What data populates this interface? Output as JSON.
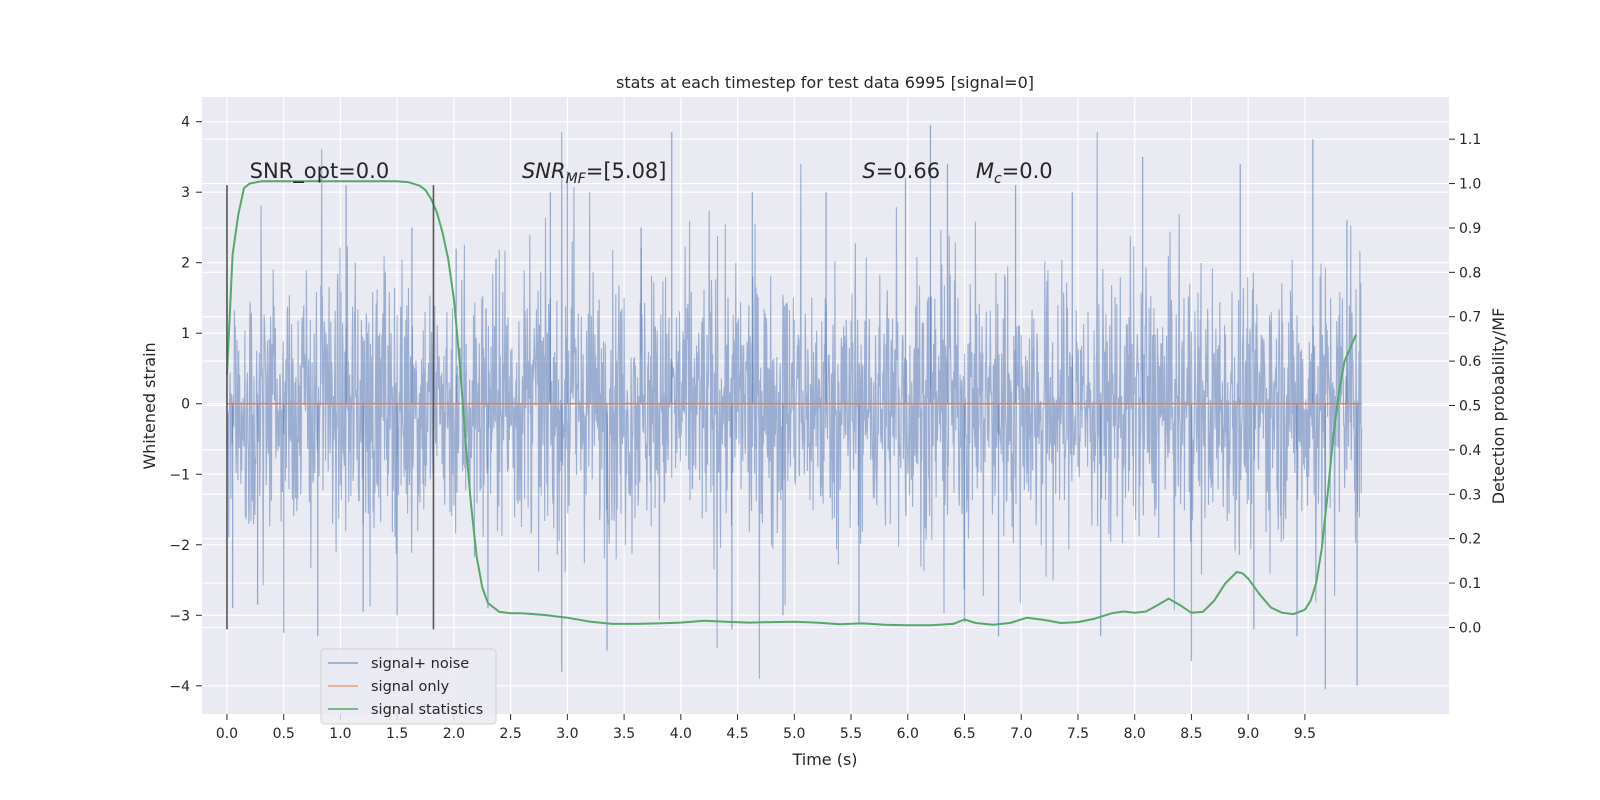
{
  "chart_data": {
    "type": "line",
    "title": "stats at each timestep for test data 6995 [signal=0]",
    "xlabel": "Time (s)",
    "ylabel": "Whitened strain",
    "y2label": "Detection probability/MF",
    "xlim": [
      -0.22,
      10.77
    ],
    "ylim": [
      -4.4,
      4.35
    ],
    "y2lim": [
      -0.195,
      1.195
    ],
    "x_ticks": [
      0.0,
      0.5,
      1.0,
      1.5,
      2.0,
      2.5,
      3.0,
      3.5,
      4.0,
      4.5,
      5.0,
      5.5,
      6.0,
      6.5,
      7.0,
      7.5,
      8.0,
      8.5,
      9.0,
      9.5
    ],
    "x_tick_labels": [
      "0.0",
      "0.5",
      "1.0",
      "1.5",
      "2.0",
      "2.5",
      "3.0",
      "3.5",
      "4.0",
      "4.5",
      "5.0",
      "5.5",
      "6.0",
      "6.5",
      "7.0",
      "7.5",
      "8.0",
      "8.5",
      "9.0",
      "9.5"
    ],
    "y_ticks": [
      4,
      3,
      2,
      1,
      0,
      -1,
      -2,
      -3,
      -4
    ],
    "y_tick_labels": [
      "4",
      "3",
      "2",
      "1",
      "0",
      "−1",
      "−2",
      "−3",
      "−4"
    ],
    "y2_ticks": [
      1.1,
      1.0,
      0.9,
      0.8,
      0.7,
      0.6,
      0.5,
      0.4,
      0.3,
      0.2,
      0.1,
      0.0
    ],
    "y2_tick_labels": [
      "1.1",
      "1.0",
      "0.9",
      "0.8",
      "0.7",
      "0.6",
      "0.5",
      "0.4",
      "0.3",
      "0.2",
      "0.1",
      "0.0"
    ],
    "grid": true,
    "legend_position": "lower-left",
    "series": [
      {
        "name": "signal+ noise",
        "axis": "left",
        "color": "#4c72b0",
        "style": "dense noise, roughly ±1.2 core with spikes to about ±3.5",
        "t_range": [
          0.0,
          10.0
        ],
        "core_amplitude": 1.2,
        "spikes": [
          [
            0.0,
            1.9
          ],
          [
            0.05,
            -2.9
          ],
          [
            0.27,
            -2.85
          ],
          [
            0.5,
            -3.25
          ],
          [
            0.8,
            -3.3
          ],
          [
            1.2,
            -2.95
          ],
          [
            1.05,
            3.1
          ],
          [
            1.5,
            -3.0
          ],
          [
            1.63,
            2.5
          ],
          [
            2.02,
            2.2
          ],
          [
            2.3,
            -2.9
          ],
          [
            2.85,
            3.0
          ],
          [
            2.95,
            -3.8
          ],
          [
            3.0,
            3.3
          ],
          [
            3.35,
            -3.5
          ],
          [
            3.65,
            2.5
          ],
          [
            3.92,
            3.85
          ],
          [
            4.45,
            -3.2
          ],
          [
            4.63,
            3.0
          ],
          [
            4.9,
            -3.0
          ],
          [
            5.28,
            3.0
          ],
          [
            5.57,
            -3.1
          ],
          [
            5.98,
            3.2
          ],
          [
            6.2,
            3.95
          ],
          [
            6.35,
            3.4
          ],
          [
            6.5,
            -3.1
          ],
          [
            6.8,
            -3.3
          ],
          [
            6.95,
            3.1
          ],
          [
            7.45,
            3.0
          ],
          [
            7.7,
            -3.3
          ],
          [
            8.07,
            3.5
          ],
          [
            8.5,
            -3.65
          ],
          [
            8.93,
            3.4
          ],
          [
            9.05,
            -3.2
          ],
          [
            9.43,
            -3.3
          ],
          [
            9.57,
            3.75
          ],
          [
            9.68,
            -4.05
          ],
          [
            9.87,
            2.6
          ],
          [
            9.96,
            -4.0
          ]
        ]
      },
      {
        "name": "signal only",
        "axis": "left",
        "color": "#dd8452",
        "x": [
          0.0,
          10.0
        ],
        "y": [
          0.0,
          0.0
        ]
      },
      {
        "name": "signal statistics",
        "axis": "right",
        "color": "#55a868",
        "x": [
          0.0,
          0.05,
          0.1,
          0.15,
          0.2,
          0.3,
          0.5,
          0.8,
          1.2,
          1.5,
          1.6,
          1.7,
          1.75,
          1.8,
          1.85,
          1.9,
          1.95,
          2.0,
          2.05,
          2.1,
          2.15,
          2.2,
          2.25,
          2.3,
          2.35,
          2.4,
          2.5,
          2.6,
          2.8,
          3.0,
          3.2,
          3.4,
          3.6,
          3.8,
          4.0,
          4.2,
          4.4,
          4.6,
          4.8,
          5.0,
          5.2,
          5.4,
          5.6,
          5.8,
          6.0,
          6.2,
          6.4,
          6.5,
          6.6,
          6.75,
          6.9,
          7.05,
          7.2,
          7.35,
          7.5,
          7.65,
          7.8,
          7.9,
          8.0,
          8.1,
          8.2,
          8.3,
          8.4,
          8.5,
          8.6,
          8.7,
          8.8,
          8.9,
          8.95,
          9.0,
          9.1,
          9.2,
          9.3,
          9.4,
          9.5,
          9.55,
          9.6,
          9.65,
          9.7,
          9.75,
          9.8,
          9.85,
          9.9,
          9.95
        ],
        "y": [
          0.57,
          0.84,
          0.93,
          0.99,
          1.0,
          1.005,
          1.005,
          1.005,
          1.005,
          1.005,
          1.003,
          0.995,
          0.985,
          0.965,
          0.935,
          0.89,
          0.83,
          0.74,
          0.6,
          0.43,
          0.28,
          0.16,
          0.09,
          0.055,
          0.045,
          0.035,
          0.032,
          0.032,
          0.028,
          0.022,
          0.013,
          0.008,
          0.008,
          0.009,
          0.011,
          0.015,
          0.013,
          0.011,
          0.012,
          0.013,
          0.011,
          0.007,
          0.009,
          0.006,
          0.005,
          0.005,
          0.008,
          0.018,
          0.01,
          0.006,
          0.01,
          0.022,
          0.017,
          0.01,
          0.012,
          0.02,
          0.032,
          0.036,
          0.033,
          0.036,
          0.05,
          0.065,
          0.05,
          0.033,
          0.035,
          0.06,
          0.1,
          0.125,
          0.122,
          0.11,
          0.075,
          0.045,
          0.033,
          0.03,
          0.04,
          0.06,
          0.1,
          0.18,
          0.3,
          0.43,
          0.53,
          0.6,
          0.63,
          0.66
        ]
      }
    ],
    "vlines": [
      {
        "x": 0.0,
        "y": [
          -3.2,
          3.1
        ],
        "color": "#555555"
      },
      {
        "x": 1.82,
        "y": [
          -3.2,
          3.1
        ],
        "color": "#555555"
      }
    ],
    "annotations": [
      {
        "text": "SNR_opt=0.0",
        "x": 0.2,
        "y": 3.2,
        "italic": false
      },
      {
        "text_italic": "SNR",
        "text_sub": "MF",
        "text_rest": "=[5.08]",
        "x": 2.6,
        "y": 3.2
      },
      {
        "text_italic": "S",
        "text_rest": "=0.66",
        "x": 5.6,
        "y": 3.2
      },
      {
        "text_italic": "M",
        "text_sub": "c",
        "text_rest": "=0.0",
        "x": 6.6,
        "y": 3.2
      }
    ]
  }
}
